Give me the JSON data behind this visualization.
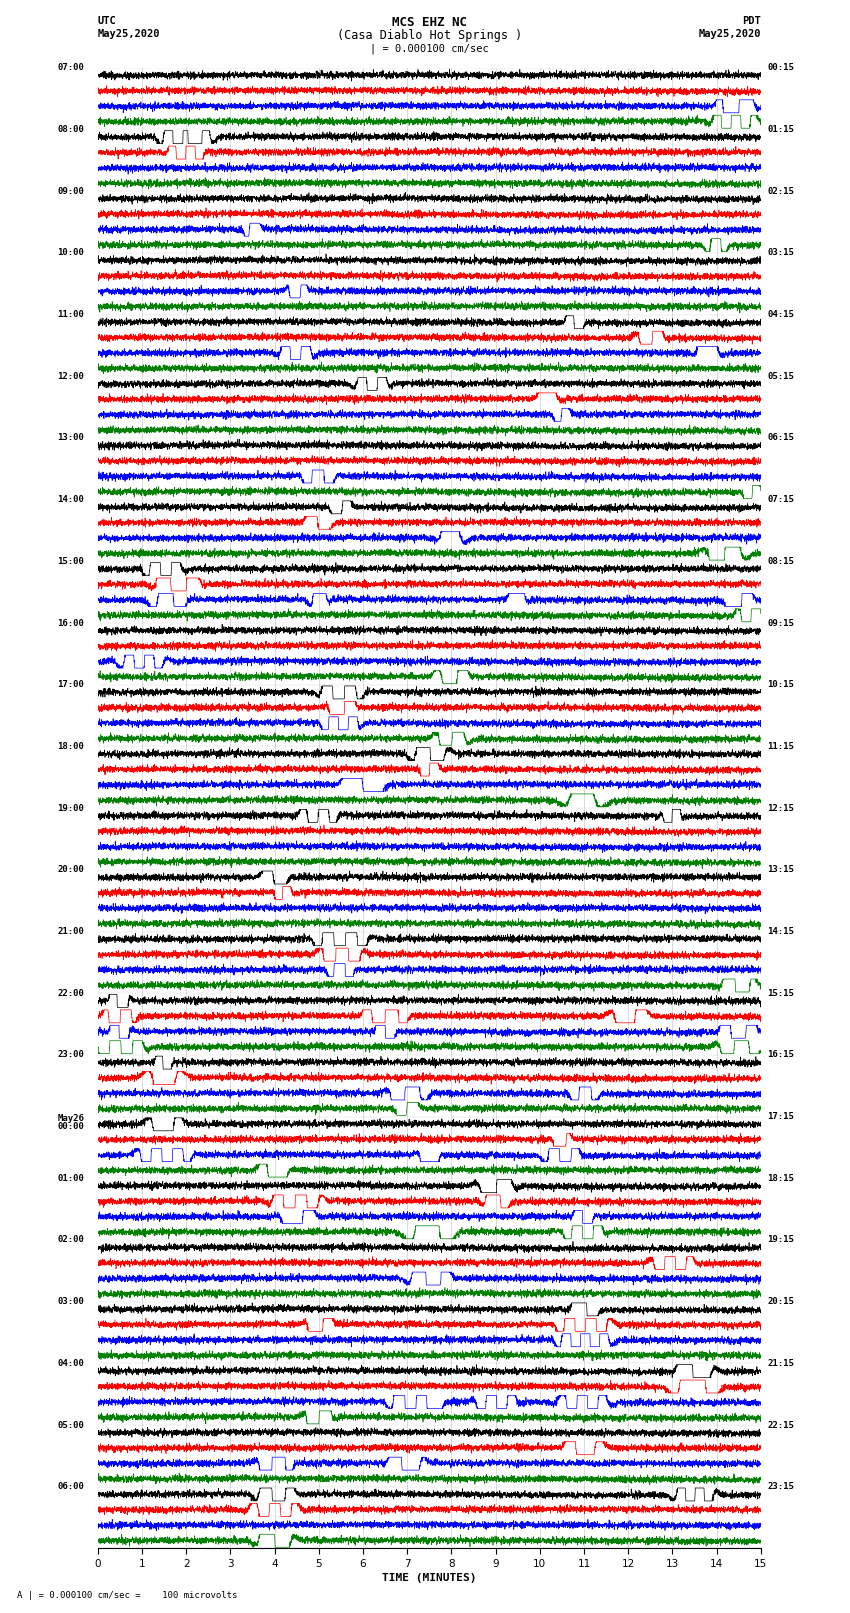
{
  "title_line1": "MCS EHZ NC",
  "title_line2": "(Casa Diablo Hot Springs )",
  "title_line3": "| = 0.000100 cm/sec",
  "left_header_line1": "UTC",
  "left_header_line2": "May25,2020",
  "right_header_line1": "PDT",
  "right_header_line2": "May25,2020",
  "bottom_label": "TIME (MINUTES)",
  "bottom_note": "A | = 0.000100 cm/sec =    100 microvolts",
  "xlim": [
    0,
    15
  ],
  "xticks": [
    0,
    1,
    2,
    3,
    4,
    5,
    6,
    7,
    8,
    9,
    10,
    11,
    12,
    13,
    14,
    15
  ],
  "colors": [
    "black",
    "red",
    "blue",
    "green"
  ],
  "n_hour_groups": 24,
  "traces_per_group": 4,
  "noise_amplitude": 0.12,
  "bg_color": "white",
  "trace_lw": 0.5,
  "left_times": [
    "07:00",
    "08:00",
    "09:00",
    "10:00",
    "11:00",
    "12:00",
    "13:00",
    "14:00",
    "15:00",
    "16:00",
    "17:00",
    "18:00",
    "19:00",
    "20:00",
    "21:00",
    "22:00",
    "23:00",
    "May26\n00:00",
    "01:00",
    "02:00",
    "03:00",
    "04:00",
    "05:00",
    "06:00"
  ],
  "right_times": [
    "00:15",
    "01:15",
    "02:15",
    "03:15",
    "04:15",
    "05:15",
    "06:15",
    "07:15",
    "08:15",
    "09:15",
    "10:15",
    "11:15",
    "12:15",
    "13:15",
    "14:15",
    "15:15",
    "16:15",
    "17:15",
    "18:15",
    "19:15",
    "20:15",
    "21:15",
    "22:15",
    "23:15"
  ],
  "events": [
    [
      0,
      2,
      14.3,
      1.0,
      8
    ],
    [
      0,
      2,
      14.5,
      2.0,
      12
    ],
    [
      0,
      3,
      14.4,
      2.0,
      10
    ],
    [
      1,
      0,
      2.0,
      1.0,
      14
    ],
    [
      1,
      0,
      2.1,
      2.0,
      16
    ],
    [
      1,
      1,
      2.0,
      2.0,
      12
    ],
    [
      2,
      2,
      3.5,
      2.0,
      6
    ],
    [
      2,
      3,
      14.0,
      3.0,
      4
    ],
    [
      3,
      2,
      4.5,
      2.0,
      8
    ],
    [
      4,
      2,
      4.5,
      2.0,
      8
    ],
    [
      4,
      0,
      10.8,
      0.0,
      4
    ],
    [
      4,
      1,
      12.5,
      0.0,
      5
    ],
    [
      4,
      2,
      13.8,
      0.0,
      6
    ],
    [
      5,
      0,
      6.2,
      3.0,
      5
    ],
    [
      5,
      1,
      10.2,
      0.0,
      3
    ],
    [
      5,
      2,
      10.5,
      3.0,
      4
    ],
    [
      6,
      2,
      5.0,
      2.0,
      10
    ],
    [
      6,
      3,
      14.8,
      2.0,
      8
    ],
    [
      7,
      0,
      5.5,
      0.0,
      4
    ],
    [
      7,
      1,
      5.0,
      1.0,
      5
    ],
    [
      7,
      2,
      8.0,
      2.0,
      4
    ],
    [
      7,
      3,
      14.2,
      2.0,
      6
    ],
    [
      8,
      0,
      1.5,
      1.0,
      10
    ],
    [
      8,
      1,
      1.8,
      1.0,
      8
    ],
    [
      8,
      2,
      1.6,
      2.0,
      6
    ],
    [
      8,
      2,
      5.0,
      1.0,
      6
    ],
    [
      8,
      2,
      9.5,
      1.0,
      5
    ],
    [
      8,
      2,
      14.5,
      2.0,
      8
    ],
    [
      8,
      3,
      14.8,
      3.0,
      6
    ],
    [
      9,
      2,
      1.0,
      2.0,
      5
    ],
    [
      9,
      3,
      8.0,
      3.0,
      4
    ],
    [
      10,
      2,
      5.5,
      2.0,
      18
    ],
    [
      10,
      1,
      5.5,
      1.0,
      14
    ],
    [
      10,
      0,
      5.5,
      0.0,
      12
    ],
    [
      10,
      3,
      8.0,
      3.0,
      5
    ],
    [
      11,
      0,
      7.5,
      0.0,
      6
    ],
    [
      11,
      1,
      7.5,
      1.0,
      5
    ],
    [
      11,
      2,
      6.0,
      2.0,
      6
    ],
    [
      11,
      3,
      11.0,
      3.0,
      4
    ],
    [
      12,
      0,
      5.0,
      0.0,
      4
    ],
    [
      12,
      0,
      13.0,
      2.0,
      10
    ],
    [
      13,
      0,
      4.0,
      0.0,
      4
    ],
    [
      13,
      1,
      4.2,
      1.0,
      4
    ],
    [
      14,
      1,
      5.5,
      1.0,
      20
    ],
    [
      14,
      2,
      5.5,
      2.0,
      16
    ],
    [
      14,
      0,
      5.5,
      0.0,
      12
    ],
    [
      14,
      3,
      14.5,
      3.0,
      8
    ],
    [
      15,
      0,
      0.5,
      0.0,
      18
    ],
    [
      15,
      1,
      0.5,
      1.0,
      16
    ],
    [
      15,
      2,
      0.5,
      2.0,
      14
    ],
    [
      15,
      3,
      0.5,
      3.0,
      12
    ],
    [
      15,
      1,
      6.5,
      1.0,
      10
    ],
    [
      15,
      2,
      6.5,
      2.0,
      8
    ],
    [
      15,
      1,
      12.0,
      1.0,
      8
    ],
    [
      15,
      2,
      14.5,
      2.0,
      8
    ],
    [
      15,
      3,
      14.5,
      3.0,
      6
    ],
    [
      16,
      0,
      1.5,
      0.0,
      8
    ],
    [
      16,
      1,
      1.5,
      1.0,
      6
    ],
    [
      16,
      2,
      7.0,
      2.0,
      8
    ],
    [
      16,
      3,
      7.0,
      3.0,
      6
    ],
    [
      16,
      2,
      11.0,
      2.0,
      6
    ],
    [
      17,
      2,
      1.5,
      2.0,
      14
    ],
    [
      17,
      0,
      1.5,
      0.0,
      12
    ],
    [
      17,
      2,
      7.5,
      2.0,
      10
    ],
    [
      17,
      1,
      10.5,
      1.0,
      10
    ],
    [
      17,
      2,
      10.5,
      2.0,
      8
    ],
    [
      18,
      3,
      7.5,
      3.0,
      8
    ],
    [
      18,
      2,
      11.0,
      2.0,
      12
    ],
    [
      18,
      3,
      11.0,
      3.0,
      10
    ],
    [
      19,
      2,
      7.5,
      2.0,
      10
    ],
    [
      20,
      2,
      11.0,
      2.0,
      24
    ],
    [
      20,
      1,
      11.0,
      1.0,
      18
    ],
    [
      20,
      0,
      11.0,
      0.0,
      12
    ],
    [
      21,
      2,
      7.0,
      2.0,
      10
    ],
    [
      21,
      2,
      11.0,
      2.0,
      8
    ],
    [
      21,
      3,
      5.0,
      3.0,
      10
    ],
    [
      21,
      2,
      7.5,
      2.0,
      10
    ],
    [
      21,
      2,
      9.0,
      2.0,
      8
    ],
    [
      21,
      0,
      13.5,
      0.0,
      8
    ],
    [
      22,
      2,
      4.0,
      2.0,
      18
    ],
    [
      22,
      2,
      7.0,
      2.0,
      14
    ],
    [
      22,
      1,
      11.0,
      1.0,
      8
    ],
    [
      23,
      0,
      4.0,
      0.0,
      6
    ],
    [
      23,
      1,
      4.0,
      1.0,
      5
    ],
    [
      23,
      3,
      4.0,
      3.0,
      8
    ],
    [
      23,
      0,
      13.5,
      0.0,
      8
    ],
    [
      17,
      3,
      4.0,
      3.0,
      8
    ],
    [
      18,
      1,
      4.5,
      1.0,
      14
    ],
    [
      18,
      2,
      4.5,
      2.0,
      10
    ],
    [
      18,
      0,
      9.0,
      0.0,
      8
    ],
    [
      18,
      1,
      9.0,
      1.0,
      8
    ],
    [
      19,
      1,
      13.0,
      1.0,
      8
    ],
    [
      20,
      1,
      5.0,
      1.0,
      6
    ],
    [
      21,
      1,
      13.5,
      1.0,
      12
    ]
  ]
}
